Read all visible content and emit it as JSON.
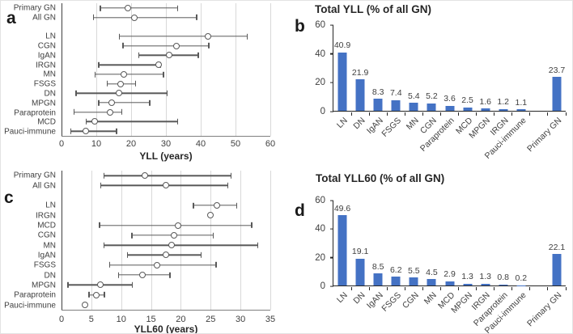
{
  "figure": {
    "panels": {
      "a": {
        "letter": "a",
        "xlabel": "YLL (years)"
      },
      "b": {
        "letter": "b",
        "title": "Total YLL (% of all GN)"
      },
      "c": {
        "letter": "c",
        "xlabel": "YLL60 (years)"
      },
      "d": {
        "letter": "d",
        "title": "Total YLL60 (% of all GN)"
      }
    },
    "colors": {
      "bar": "#4472C4",
      "error_bar": "#595959",
      "marker_fill": "#FFFFFF",
      "gridline": "#D9D9D9",
      "axis_dark": "#262626",
      "axis_gray": "#7F7F7F",
      "text": "#404040"
    }
  },
  "chart_data": [
    {
      "panel": "a",
      "type": "scatter",
      "subtype": "horizontal-dot-errorbar",
      "xlabel": "YLL (years)",
      "xlim": [
        0,
        60
      ],
      "xticks": [
        0,
        10,
        20,
        30,
        40,
        50,
        60
      ],
      "grid": true,
      "rows": [
        {
          "label": "Primary GN",
          "value": 19,
          "lo": 11,
          "hi": 33.5
        },
        {
          "label": "All GN",
          "value": 21,
          "lo": 9,
          "hi": 39
        },
        {
          "label": "",
          "value": null,
          "lo": null,
          "hi": null
        },
        {
          "label": "LN",
          "value": 42,
          "lo": 16.5,
          "hi": 53.5
        },
        {
          "label": "CGN",
          "value": 33,
          "lo": 17.5,
          "hi": 42.5
        },
        {
          "label": "IgAN",
          "value": 31,
          "lo": 22,
          "hi": 39.5
        },
        {
          "label": "IRGN",
          "value": 28,
          "lo": 10.5,
          "hi": 28.5
        },
        {
          "label": "MN",
          "value": 18,
          "lo": 9.5,
          "hi": 29.5
        },
        {
          "label": "FSGS",
          "value": 17,
          "lo": 13,
          "hi": 21.5
        },
        {
          "label": "DN",
          "value": 16.5,
          "lo": 4,
          "hi": 30.5
        },
        {
          "label": "MPGN",
          "value": 14.5,
          "lo": 10.5,
          "hi": 25.5
        },
        {
          "label": "Paraprotein",
          "value": 14,
          "lo": 3.5,
          "hi": 17.5
        },
        {
          "label": "MCD",
          "value": 9.5,
          "lo": 7,
          "hi": 33.5
        },
        {
          "label": "Pauci-immune",
          "value": 7,
          "lo": 2.5,
          "hi": 16
        }
      ]
    },
    {
      "panel": "b",
      "type": "bar",
      "title": "Total YLL (% of all GN)",
      "ylim": [
        0,
        60
      ],
      "yticks": [
        0,
        20,
        40,
        60
      ],
      "bars": [
        {
          "label": "LN",
          "value": 40.9
        },
        {
          "label": "DN",
          "value": 21.9
        },
        {
          "label": "IgAN",
          "value": 8.3
        },
        {
          "label": "FSGS",
          "value": 7.4
        },
        {
          "label": "MN",
          "value": 5.4
        },
        {
          "label": "CGN",
          "value": 5.2
        },
        {
          "label": "Paraprotein",
          "value": 3.6
        },
        {
          "label": "MCD",
          "value": 2.5
        },
        {
          "label": "MPGN",
          "value": 1.6
        },
        {
          "label": "IRGN",
          "value": 1.2
        },
        {
          "label": "Pauci-immune",
          "value": 1.1
        },
        {
          "label": null,
          "value": null
        },
        {
          "label": "Primary GN",
          "value": 23.7
        }
      ]
    },
    {
      "panel": "c",
      "type": "scatter",
      "subtype": "horizontal-dot-errorbar",
      "xlabel": "YLL60 (years)",
      "xlim": [
        0,
        35
      ],
      "xticks": [
        0,
        5,
        10,
        15,
        20,
        25,
        30,
        35
      ],
      "grid": true,
      "rows": [
        {
          "label": "Primary GN",
          "value": 14,
          "lo": 7,
          "hi": 28.5
        },
        {
          "label": "All GN",
          "value": 17.5,
          "lo": 6.5,
          "hi": 28
        },
        {
          "label": "",
          "value": null,
          "lo": null,
          "hi": null
        },
        {
          "label": "LN",
          "value": 26,
          "lo": 22,
          "hi": 29.5
        },
        {
          "label": "IRGN",
          "value": 25,
          "lo": 25,
          "hi": 25
        },
        {
          "label": "MCD",
          "value": 19.5,
          "lo": 6.3,
          "hi": 32
        },
        {
          "label": "CGN",
          "value": 18.8,
          "lo": 11.7,
          "hi": 25.5
        },
        {
          "label": "MN",
          "value": 18.4,
          "lo": 7,
          "hi": 33
        },
        {
          "label": "IgAN",
          "value": 17.5,
          "lo": 11,
          "hi": 23.5
        },
        {
          "label": "FSGS",
          "value": 16,
          "lo": 8,
          "hi": 26
        },
        {
          "label": "DN",
          "value": 13.5,
          "lo": 9.5,
          "hi": 18.3
        },
        {
          "label": "MPGN",
          "value": 6.5,
          "lo": 1,
          "hi": 12
        },
        {
          "label": "Paraprotein",
          "value": 5.8,
          "lo": 4.5,
          "hi": 7.3
        },
        {
          "label": "Pauci-immune",
          "value": 4,
          "lo": 4,
          "hi": 4
        }
      ]
    },
    {
      "panel": "d",
      "type": "bar",
      "title": "Total YLL60 (% of all GN)",
      "ylim": [
        0,
        60
      ],
      "yticks": [
        0,
        20,
        40,
        60
      ],
      "bars": [
        {
          "label": "LN",
          "value": 49.6
        },
        {
          "label": "DN",
          "value": 19.1
        },
        {
          "label": "IgAN",
          "value": 8.5
        },
        {
          "label": "FSGS",
          "value": 6.2
        },
        {
          "label": "CGN",
          "value": 5.5
        },
        {
          "label": "MN",
          "value": 4.5
        },
        {
          "label": "MCD",
          "value": 2.9
        },
        {
          "label": "MPGN",
          "value": 1.3
        },
        {
          "label": "IRGN",
          "value": 1.3
        },
        {
          "label": "Paraprotein",
          "value": 0.8
        },
        {
          "label": "Pauci-immune",
          "value": 0.2
        },
        {
          "label": null,
          "value": null
        },
        {
          "label": "Primary GN",
          "value": 22.1
        }
      ]
    }
  ]
}
